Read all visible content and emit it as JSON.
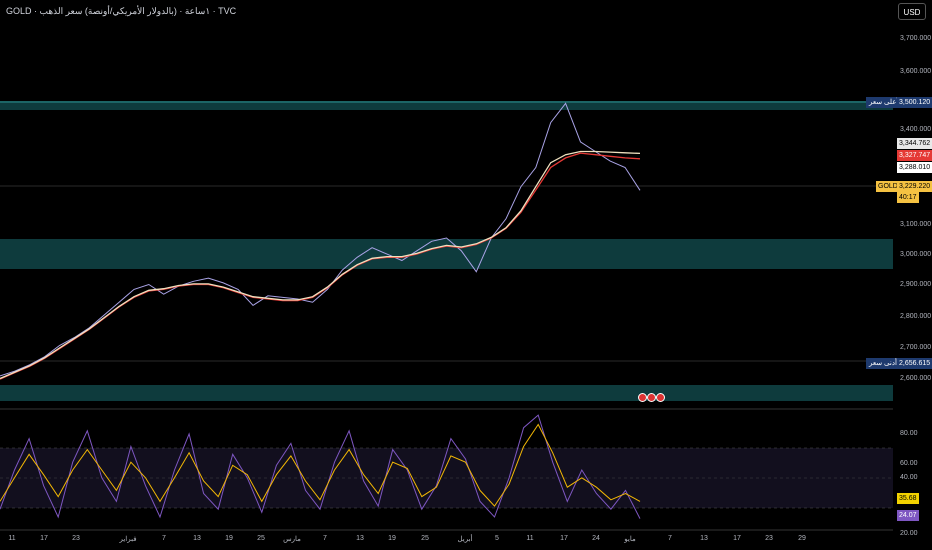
{
  "header": {
    "title": "GOLD · ١ساعة · (بالدولار الأمريكي/أونصة) سعر الذهب · TVC",
    "currency_button": "USD"
  },
  "price_axis": {
    "ticks": [
      "3,700.000",
      "3,600.000",
      "3,500.000",
      "3,400.000",
      "3,300.000",
      "3,200.000",
      "3,100.000",
      "3,000.000",
      "2,900.000",
      "2,800.000",
      "2,700.000",
      "2,600.000"
    ]
  },
  "labels": {
    "high": {
      "text": "أعلى سعر",
      "value": "3,500.120"
    },
    "low": {
      "text": "أدنى سعر",
      "value": "2,656.615"
    },
    "ma1": "3,344.762",
    "ma2": "3,327.747",
    "ma3": "3,288.010",
    "current_symbol": "GOLD",
    "current_price": "3,229.220",
    "countdown": "40:17"
  },
  "oscillator": {
    "ticks": [
      "80.00",
      "60.00",
      "40.00",
      "20.00"
    ],
    "value_1": "35.68",
    "value_2": "24.07"
  },
  "time_axis": [
    "11",
    "17",
    "23",
    "فبراير",
    "7",
    "13",
    "19",
    "25",
    "مارس",
    "7",
    "13",
    "19",
    "25",
    "أبريل",
    "5",
    "11",
    "17",
    "24",
    "مايو",
    "7",
    "13",
    "17",
    "23",
    "29"
  ],
  "colors": {
    "price_line": "#a9a3e6",
    "ma_red": "#e53935",
    "ma_cream": "#f0e2c0",
    "zone": "#0e3b3d",
    "osc_k": "#7e57c2",
    "osc_d": "#f2b705",
    "label_blue": "#1e3a6e"
  },
  "chart_data": {
    "type": "line",
    "y_range": [
      2550,
      3760
    ],
    "series": [
      {
        "values": [
          2650,
          2665,
          2685,
          2710,
          2745,
          2770,
          2800,
          2840,
          2880,
          2920,
          2935,
          2905,
          2930,
          2945,
          2955,
          2940,
          2920,
          2870,
          2900,
          2895,
          2890,
          2880,
          2920,
          2980,
          3020,
          3050,
          3030,
          3010,
          3040,
          3070,
          3080,
          3040,
          2975,
          3080,
          3140,
          3240,
          3300,
          3440,
          3500,
          3380,
          3350,
          3320,
          3300,
          3229
        ]
      },
      {
        "values": [
          2640,
          2660,
          2680,
          2705,
          2735,
          2765,
          2795,
          2830,
          2865,
          2895,
          2915,
          2920,
          2930,
          2935,
          2935,
          2925,
          2910,
          2895,
          2890,
          2885,
          2885,
          2895,
          2925,
          2965,
          2995,
          3015,
          3020,
          3020,
          3030,
          3045,
          3055,
          3050,
          3060,
          3080,
          3110,
          3160,
          3230,
          3300,
          3330,
          3345,
          3340,
          3335,
          3330,
          3327
        ]
      },
      {
        "values": [
          2642,
          2662,
          2682,
          2707,
          2737,
          2767,
          2797,
          2832,
          2867,
          2897,
          2917,
          2922,
          2932,
          2937,
          2937,
          2927,
          2912,
          2897,
          2892,
          2887,
          2887,
          2897,
          2927,
          2967,
          2997,
          3017,
          3022,
          3022,
          3032,
          3047,
          3057,
          3052,
          3062,
          3082,
          3112,
          3165,
          3240,
          3315,
          3340,
          3350,
          3350,
          3348,
          3346,
          3344
        ]
      }
    ],
    "oscillator": {
      "y_range": [
        18,
        92
      ],
      "series": [
        {
          "values": [
            30,
            55,
            75,
            45,
            25,
            60,
            80,
            50,
            35,
            70,
            45,
            25,
            55,
            78,
            40,
            30,
            65,
            50,
            28,
            58,
            72,
            42,
            30,
            60,
            80,
            48,
            32,
            68,
            55,
            30,
            45,
            75,
            62,
            35,
            25,
            50,
            82,
            90,
            60,
            35,
            55,
            40,
            30,
            42,
            24
          ]
        },
        {
          "values": [
            35,
            50,
            65,
            52,
            38,
            55,
            68,
            55,
            42,
            60,
            50,
            35,
            50,
            66,
            48,
            38,
            58,
            52,
            35,
            52,
            64,
            48,
            36,
            55,
            68,
            52,
            40,
            60,
            56,
            38,
            44,
            64,
            60,
            42,
            32,
            46,
            70,
            84,
            66,
            44,
            50,
            44,
            36,
            40,
            35
          ]
        }
      ]
    }
  }
}
